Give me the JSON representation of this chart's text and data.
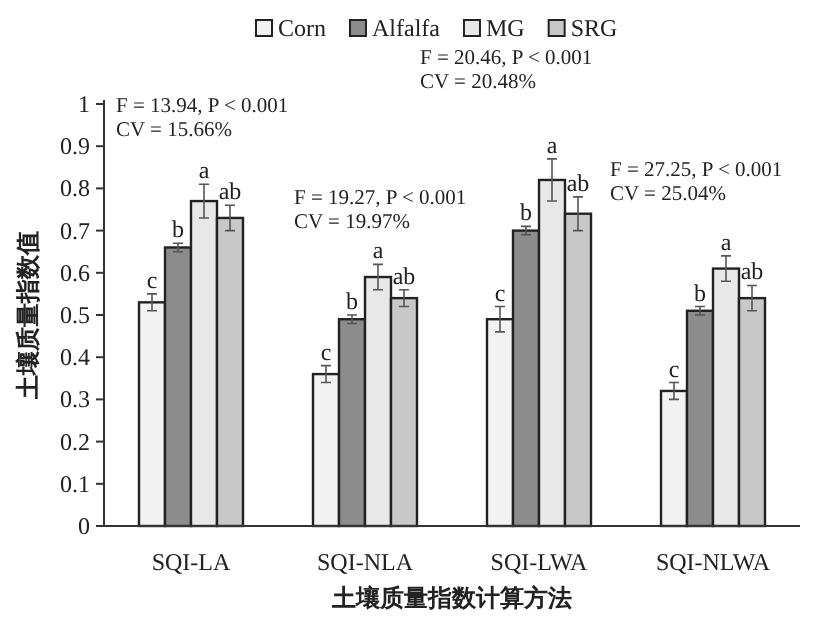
{
  "chart_data": {
    "type": "bar",
    "xlabel": "土壤质量指数计算方法",
    "ylabel": "土壤质量指数值",
    "categories": [
      "SQI-LA",
      "SQI-NLA",
      "SQI-LWA",
      "SQI-NLWA"
    ],
    "series": [
      {
        "name": "Corn",
        "color": "#f2f2f2",
        "values": [
          0.53,
          0.36,
          0.49,
          0.32
        ],
        "errors": [
          0.02,
          0.02,
          0.03,
          0.02
        ],
        "value_labels": [
          "c",
          "c",
          "c",
          "c"
        ]
      },
      {
        "name": "Alfalfa",
        "color": "#8c8c8c",
        "values": [
          0.66,
          0.49,
          0.7,
          0.51
        ],
        "errors": [
          0.01,
          0.01,
          0.01,
          0.01
        ],
        "value_labels": [
          "b",
          "b",
          "b",
          "b"
        ]
      },
      {
        "name": "MG",
        "color": "#e8e8e8",
        "values": [
          0.77,
          0.59,
          0.82,
          0.61
        ],
        "errors": [
          0.04,
          0.03,
          0.05,
          0.03
        ],
        "value_labels": [
          "a",
          "a",
          "a",
          "a"
        ]
      },
      {
        "name": "SRG",
        "color": "#c8c8c8",
        "values": [
          0.73,
          0.54,
          0.74,
          0.54
        ],
        "errors": [
          0.03,
          0.02,
          0.04,
          0.03
        ],
        "value_labels": [
          "ab",
          "ab",
          "ab",
          "ab"
        ]
      }
    ],
    "ylim": [
      0,
      1
    ],
    "yticks": [
      0,
      0.1,
      0.2,
      0.3,
      0.4,
      0.5,
      0.6,
      0.7,
      0.8,
      0.9,
      1
    ],
    "legend": "top",
    "grid": false,
    "annotations": [
      "F = 13.94, P < 0.001",
      "CV = 15.66%",
      "F = 19.27, P < 0.001",
      "CV = 19.97%",
      "F = 20.46, P < 0.001",
      "CV = 20.48%",
      "F = 27.25, P < 0.001",
      "CV = 25.04%"
    ]
  }
}
